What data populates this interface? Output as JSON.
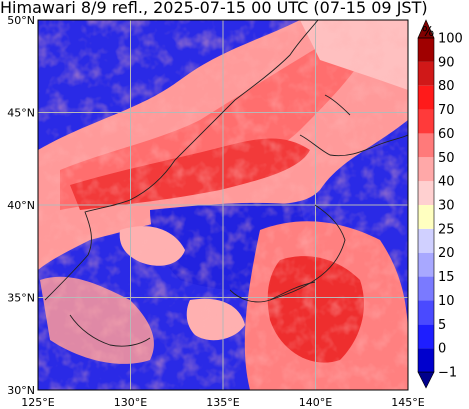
{
  "title": "Himawari 8/9 refl., 2025-07-15 00 UTC (07-15 09 JST)",
  "colorbar": {
    "unit": "%",
    "levels": [
      "−1",
      "0",
      "5",
      "10",
      "15",
      "20",
      "25",
      "30",
      "40",
      "50",
      "60",
      "70",
      "80",
      "90",
      "100"
    ],
    "colors": [
      "#00008b",
      "#0000cd",
      "#1e1eff",
      "#4a4aff",
      "#7a7aff",
      "#a8a8ff",
      "#d0d0ff",
      "#ffffc0",
      "#ffd0d0",
      "#ffa8a8",
      "#ff7a7a",
      "#ff3a3a",
      "#ff1a1a",
      "#d01818",
      "#a00000",
      "#800000"
    ]
  },
  "axes": {
    "lon_ticks": [
      "125°E",
      "130°E",
      "135°E",
      "140°E",
      "145°E"
    ],
    "lat_ticks": [
      "30°N",
      "35°N",
      "40°N",
      "45°N",
      "50°N"
    ]
  }
}
